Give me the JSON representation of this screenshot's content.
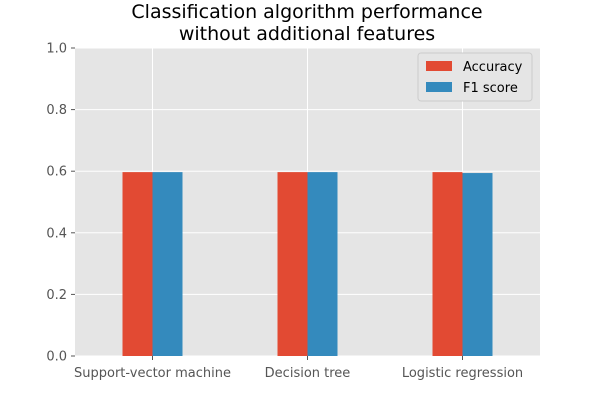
{
  "chart_data": {
    "type": "bar",
    "title": [
      "Classification algorithm performance",
      "without additional features"
    ],
    "categories": [
      "Support-vector machine",
      "Decision tree",
      "Logistic regression"
    ],
    "series": [
      {
        "name": "Accuracy",
        "color": "#E24A33",
        "values": [
          0.597,
          0.597,
          0.597
        ]
      },
      {
        "name": "F1 score",
        "color": "#348ABD",
        "values": [
          0.597,
          0.597,
          0.594
        ]
      }
    ],
    "ylim": [
      0,
      1.0
    ],
    "yticks": [
      "0.0",
      "0.2",
      "0.4",
      "0.6",
      "0.8",
      "1.0"
    ],
    "grid": true,
    "background": "#E5E5E5",
    "legend_position": "top-right"
  }
}
